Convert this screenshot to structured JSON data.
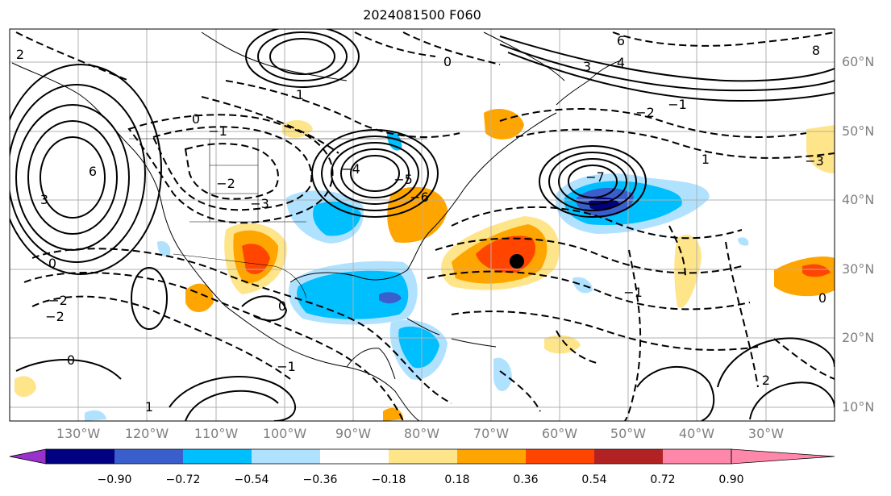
{
  "title": "2024081500 F060",
  "lat_labels": [
    "60°N",
    "50°N",
    "40°N",
    "30°N",
    "20°N",
    "10°N"
  ],
  "lon_labels": [
    "130°W",
    "120°W",
    "110°W",
    "100°W",
    "90°W",
    "80°W",
    "70°W",
    "60°W",
    "50°W",
    "40°W",
    "30°W"
  ],
  "colorbar": {
    "colors": [
      "#9932cc",
      "#000080",
      "#3a5fcd",
      "#00bfff",
      "#b0e2ff",
      "#ffffff",
      "#ffe58a",
      "#ffa500",
      "#ff4500",
      "#b22222",
      "#ff88aa"
    ],
    "ticks": [
      "−0.90",
      "−0.72",
      "−0.54",
      "−0.36",
      "−0.18",
      "0.18",
      "0.36",
      "0.54",
      "0.72",
      "0.90"
    ]
  },
  "contour_labels": [
    "6",
    "3",
    "2",
    "0",
    "1",
    "−1",
    "−2",
    "−3",
    "−4",
    "−5",
    "−6",
    "−7",
    "6",
    "4",
    "3",
    "8",
    "0",
    "−1",
    "−2",
    "0",
    "0",
    "−1",
    "1",
    "2",
    "−2",
    "0",
    "1",
    "−1",
    "0",
    "−3",
    "−2"
  ],
  "markers": [
    {
      "name": "storm-center",
      "lon": -66,
      "lat": 31
    }
  ]
}
